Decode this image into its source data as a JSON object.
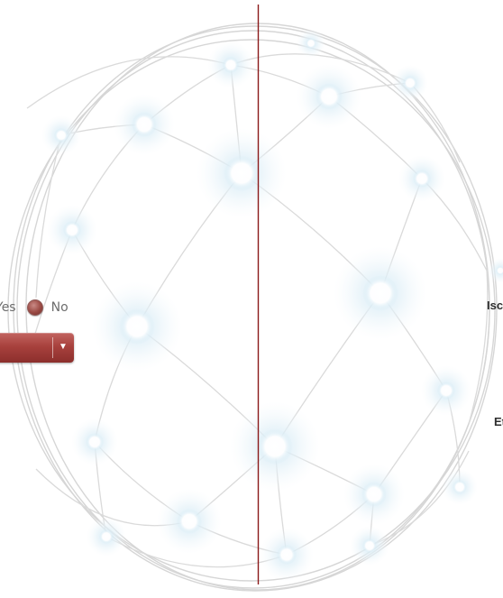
{
  "toggle": {
    "yes_label": "Yes",
    "no_label": "No",
    "selected": "No"
  },
  "dropdown": {
    "value": "",
    "arrow": "▼"
  },
  "edge_labels": {
    "label1": "Isc",
    "label2": "Et"
  },
  "colors": {
    "accent": "#a8413d",
    "divider_line": "#8b1a1a",
    "mesh": "#dcdcdc",
    "node_glow": "#cfe6f2"
  }
}
